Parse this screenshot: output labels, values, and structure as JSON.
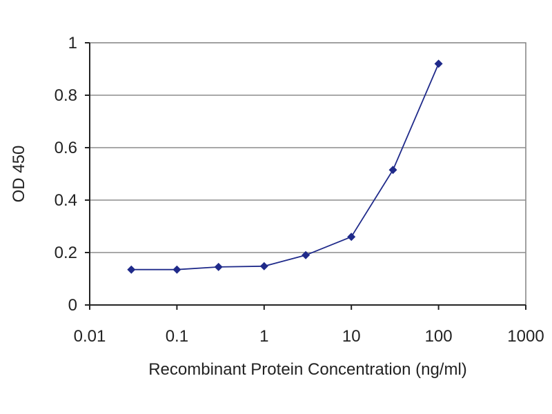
{
  "chart_data": {
    "type": "line",
    "title": "",
    "xlabel": "Recombinant Protein Concentration (ng/ml)",
    "ylabel": "OD 450",
    "x_scale": "log",
    "xlim": [
      0.01,
      1000
    ],
    "ylim": [
      0,
      1
    ],
    "x_ticks": [
      0.01,
      0.1,
      1,
      10,
      100,
      1000
    ],
    "x_tick_labels": [
      "0.01",
      "0.1",
      "1",
      "10",
      "100",
      "1000"
    ],
    "y_ticks": [
      0,
      0.2,
      0.4,
      0.6,
      0.8,
      1
    ],
    "y_tick_labels": [
      "0",
      "0.2",
      "0.4",
      "0.6",
      "0.8",
      "1"
    ],
    "grid": "horizontal",
    "series": [
      {
        "color": "#1f2a8a",
        "marker": "diamond",
        "x": [
          0.03,
          0.1,
          0.3,
          1,
          3,
          10,
          30,
          100
        ],
        "y": [
          0.135,
          0.135,
          0.145,
          0.148,
          0.19,
          0.26,
          0.515,
          0.92
        ]
      }
    ]
  }
}
